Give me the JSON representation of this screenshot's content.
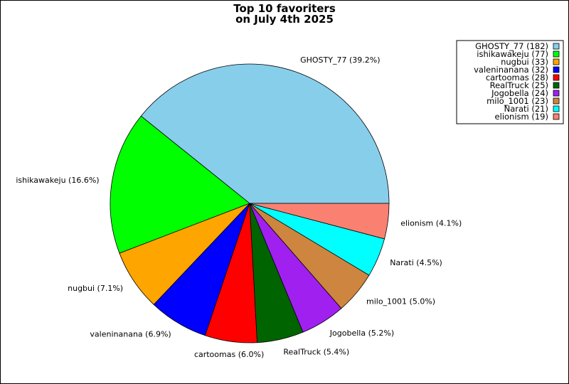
{
  "chart_data": {
    "type": "pie",
    "title_lines": [
      "Top 10 favoriters",
      "on July 4th 2025"
    ],
    "slices": [
      {
        "name": "GHOSTY_77",
        "value": 182,
        "percent_label": "GHOSTY_77 (39.2%)",
        "legend_label": "GHOSTY_77 (182)",
        "color": "#87ceeb"
      },
      {
        "name": "ishikawakeju",
        "value": 77,
        "percent_label": "ishikawakeju (16.6%)",
        "legend_label": "ishikawakeju (77)",
        "color": "#00ff00"
      },
      {
        "name": "nugbui",
        "value": 33,
        "percent_label": "nugbui (7.1%)",
        "legend_label": "nugbui (33)",
        "color": "#ffa500"
      },
      {
        "name": "valeninanana",
        "value": 32,
        "percent_label": "valeninanana (6.9%)",
        "legend_label": "valeninanana (32)",
        "color": "#0000ff"
      },
      {
        "name": "cartoomas",
        "value": 28,
        "percent_label": "cartoomas (6.0%)",
        "legend_label": "cartoomas (28)",
        "color": "#ff0000"
      },
      {
        "name": "RealTruck",
        "value": 25,
        "percent_label": "RealTruck (5.4%)",
        "legend_label": "RealTruck (25)",
        "color": "#006400"
      },
      {
        "name": "Jogobella",
        "value": 24,
        "percent_label": "Jogobella (5.2%)",
        "legend_label": "Jogobella (24)",
        "color": "#a020f0"
      },
      {
        "name": "milo_1001",
        "value": 23,
        "percent_label": "milo_1001 (5.0%)",
        "legend_label": "milo_1001 (23)",
        "color": "#cd853f"
      },
      {
        "name": "Narati",
        "value": 21,
        "percent_label": "Narati (4.5%)",
        "legend_label": "Narati (21)",
        "color": "#00ffff"
      },
      {
        "name": "elionism",
        "value": 19,
        "percent_label": "elionism (4.1%)",
        "legend_label": "elionism (19)",
        "color": "#fa8072"
      }
    ],
    "start": "3 o'clock",
    "direction": "counterclockwise",
    "legend_position": "top-right"
  }
}
